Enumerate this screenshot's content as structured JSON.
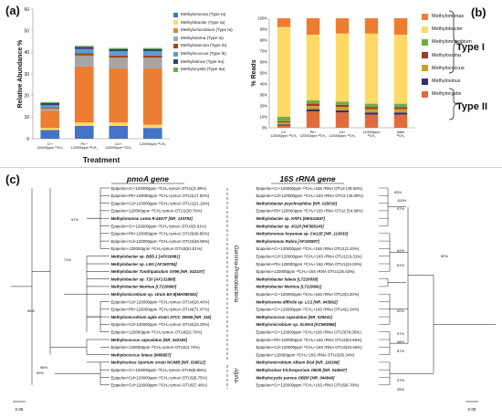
{
  "panels": {
    "a": "(a)",
    "b": "(b)",
    "c": "(c)"
  },
  "colors": {
    "Methylomonas": "#4472c4",
    "Methylobacter": "#ffd966",
    "Methylomicrobium": "#ed7d31",
    "Methylosoma": "#a5a5a5",
    "Methylosarcina": "#9e480e",
    "Methylococcus": "#5b9bd5",
    "Methylosinus": "#264478",
    "Methylocystis": "#70ad47",
    "b_Methylomonas": "#ed7d31",
    "b_Methylobacter": "#ffd966",
    "b_Methylomicrobium": "#70ad47",
    "b_Methylosoma": "#9e3b2b",
    "b_Methylococcus": "#c9a227",
    "b_Methylosinus": "#3a2f6b",
    "b_Methylocystis": "#e26b3a"
  },
  "chart_data": [
    {
      "type": "bar",
      "stacked": true,
      "title": "",
      "xlabel": "Treatment",
      "ylabel": "Relative Abundance %",
      "ylim": [
        0,
        60
      ],
      "yticks": [
        "0",
        "10",
        "20",
        "30",
        "40",
        "50",
        "60"
      ],
      "categories": [
        "Cl + 120000ppm ¹³CH₄",
        "Pb + 120000ppm ¹³CH₄",
        "Cd + 120000ppm ¹³CH₄",
        "120000ppm ¹³CH₄"
      ],
      "series": [
        {
          "name": "Methylomonas (Type Ia)",
          "color_key": "Methylomonas",
          "values": [
            4,
            6,
            6,
            5
          ]
        },
        {
          "name": "Methylobacter (Type Ia)",
          "color_key": "Methylobacter",
          "values": [
            1,
            1.5,
            1.5,
            1.5
          ]
        },
        {
          "name": "Methylomicrobium (Type Ia)",
          "color_key": "Methylomicrobium",
          "values": [
            8,
            26,
            25,
            26
          ]
        },
        {
          "name": "Methylosoma (Type Ia)",
          "color_key": "Methylosoma",
          "values": [
            1,
            5,
            5,
            5
          ]
        },
        {
          "name": "Methylosarcina (Type Ib)",
          "color_key": "Methylosarcina",
          "values": [
            0.5,
            1,
            1,
            1
          ]
        },
        {
          "name": "Methylococcus (Type Ib)",
          "color_key": "Methylococcus",
          "values": [
            1,
            2,
            2,
            2
          ]
        },
        {
          "name": "Methylosinus (Type IIa)",
          "color_key": "Methylosinus",
          "values": [
            1,
            1,
            1,
            1
          ]
        },
        {
          "name": "Methylocystis (Type IIa)",
          "color_key": "Methylocystis",
          "values": [
            0.5,
            0.5,
            0.5,
            0.5
          ]
        }
      ]
    },
    {
      "type": "bar",
      "stacked": true,
      "title": "",
      "xlabel": "",
      "ylabel": "% Reads",
      "ylim": [
        0,
        100
      ],
      "yticks": [
        "0%",
        "10%",
        "20%",
        "30%",
        "40%",
        "50%",
        "60%",
        "70%",
        "80%",
        "90%",
        "100%"
      ],
      "categories": [
        "Cl+ 120000ppm ¹³CH₄",
        "Pb+ 120000ppm ¹³CH₄",
        "Cd+ 120000ppm ¹³CH₄",
        "120000ppm ¹³CH₄",
        "Natm ¹³CH₄"
      ],
      "series": [
        {
          "name": "Methylocystis",
          "color_key": "b_Methylocystis",
          "values": [
            2,
            15,
            14,
            12,
            12
          ]
        },
        {
          "name": "Methylosinus",
          "color_key": "b_Methylosinus",
          "values": [
            1,
            2,
            2,
            2,
            2
          ]
        },
        {
          "name": "Methylococcus",
          "color_key": "b_Methylococcus",
          "values": [
            2,
            3,
            3,
            3,
            3
          ]
        },
        {
          "name": "Methylosoma",
          "color_key": "b_Methylosoma",
          "values": [
            1,
            2,
            2,
            2,
            2
          ]
        },
        {
          "name": "Methylomicrobium",
          "color_key": "b_Methylomicrobium",
          "values": [
            4,
            3,
            3,
            3,
            3
          ]
        },
        {
          "name": "Methylobacter",
          "color_key": "b_Methylobacter",
          "values": [
            82,
            60,
            62,
            64,
            63
          ]
        },
        {
          "name": "Methylomonas",
          "color_key": "b_Methylomonas",
          "values": [
            8,
            15,
            14,
            14,
            15
          ]
        }
      ]
    }
  ],
  "legend_a": [
    "Methylomonas (Type Ia)",
    "Methylobacter (Type Ia)",
    "Methylomicrobium (Type Ia)",
    "Methylosoma (Type Ia)",
    "Methylosarcina (Type Ib)",
    "Methylococcus (Type Ib)",
    "Methylosinus (Type IIa)",
    "Methylocystis (Type IIa)"
  ],
  "legend_b": [
    "Methylomonas",
    "Methylobacter",
    "Methylomicrobium",
    "Methylosoma",
    "Methylococcus",
    "Methylosinus",
    "Methylocystis"
  ],
  "type_labels": {
    "type1": "Type I",
    "type2": "Type II"
  },
  "trees": {
    "pmoA": {
      "title": "pmoA gene",
      "groups": [
        "Gamma-Proteobacteria",
        "Alpha-"
      ],
      "scale": "0.05",
      "bootstrap": [
        "91%",
        "71%",
        "96%",
        "99%",
        "98%"
      ],
      "leaves": [
        {
          "t": "Epipelon+Cr+120000ppm ¹³CH₄+pmoA OTU1(3.39%)",
          "b": false
        },
        {
          "t": "Epipelon+Pb+120000ppm ¹³CH₄+pmoA OTU1(17.50%)",
          "b": false
        },
        {
          "t": "Epipelon+Cd+120000ppm ¹³CH₄+pmoA OTU1(21.19%)",
          "b": false
        },
        {
          "t": "Epipelon+120000ppm ¹³CH₄+pmoA OTU1(30.76%)",
          "b": false
        },
        {
          "t": "Methylomonas Lenta R-45377 [NR_133783]",
          "b": true
        },
        {
          "t": "Epipelon+Cr+120000ppm ¹³CH₄+pmoA OTU3(3.91%)",
          "b": false
        },
        {
          "t": "Epipelon+Pb+120000ppm ¹³CH₄+pmoA OTU3(49.85%)",
          "b": false
        },
        {
          "t": "Epipelon+Cd+120000ppm ¹³CH₄+pmoA OTU3(48.05%)",
          "b": false
        },
        {
          "t": "Epipelon+120000ppm ¹³CH₄+pmoA OTU3(51.51%)",
          "b": false
        },
        {
          "t": "Methylobacter sp. BB5.1 [AF016981]",
          "b": true
        },
        {
          "t": "Methylobacter sp. LW1 [AF150784]",
          "b": true
        },
        {
          "t": "Methylobacter Tundripaludum SV96 [NR_042107]",
          "b": true
        },
        {
          "t": "Methylobacter sp. T20 [AF131868]",
          "b": true
        },
        {
          "t": "Methylobacter Marinus [LT220840]",
          "b": true
        },
        {
          "t": "Methylomicrobium sp. strain B3-6[MH385381]",
          "b": true
        },
        {
          "t": "Epipelon+Cd+120000ppm ¹³CH₄+pmoA OTU4(20.40%)",
          "b": false
        },
        {
          "t": "Epipelon+Pb+120000ppm ¹³CH₄+pmoA OTU4(71.47%)",
          "b": false
        },
        {
          "t": "Methylomicrobium agile strain ATCC 35068 [NR_116]",
          "b": true
        },
        {
          "t": "Epipelon+Cd+120000ppm ¹³CH₄+pmoA OTU4(22.25%)",
          "b": false
        },
        {
          "t": "Epipelon+120000ppm ¹³CH₄+pmoA OTU4(22.76%)",
          "b": false
        },
        {
          "t": "Methylococcus capsulatus [NR_042183]",
          "b": true
        },
        {
          "t": "Epipelon+120000ppm ¹³CH₄+pmoA OTU2(4.74%)",
          "b": false
        },
        {
          "t": "Methylococcus luteus [M95657]",
          "b": true
        },
        {
          "t": "Methylosinus Sporium strain NCIMB [NR_026512]",
          "b": true
        },
        {
          "t": "Epipelon+Cr+120000ppm ¹³CH₄+pmoA OTU5(8.95%)",
          "b": false
        },
        {
          "t": "Epipelon+Cd+120000ppm ¹³CH₄+pmoA OTU5(6.75%)",
          "b": false
        },
        {
          "t": "Epipelon+Cd+120000ppm ¹³CH₄+pmoA OTU5(7.46%)",
          "b": false
        }
      ]
    },
    "rrna": {
      "title": "16S rRNA gene",
      "scale": "0.05",
      "bootstrap": [
        "83%",
        "100%",
        "97%",
        "62%",
        "89%",
        "61%",
        "60%",
        "97%",
        "98%",
        "87%",
        "97%",
        "95%"
      ],
      "leaves": [
        {
          "t": "Epipelon+Cr+120000ppm ¹³CH₄+16S rRNA OTU2 (49.60%)",
          "b": false
        },
        {
          "t": "Epipelon+Cd+120000ppm ¹³CH₄+16S rRNA OTU2 (48.09%)",
          "b": false
        },
        {
          "t": "Methylobacter psychrophilus [NR_025016]",
          "b": true
        },
        {
          "t": "Epipelon+Pb+120000ppm ¹³CH₄+16S rRNA OTU2 (54.98%)",
          "b": false
        },
        {
          "t": "Methylobacter sp. KRF1 [MK511847]",
          "b": true
        },
        {
          "t": "Methylobacter sp. 4/120 [HF565143]",
          "b": true
        },
        {
          "t": "Methylomonas koyamae sp. Fw12E [NR_113033]",
          "b": true
        },
        {
          "t": "Methylomonas Rubra [AF150807]",
          "b": true
        },
        {
          "t": "Epipelon+Cr+120000ppm ¹³CH₄+16S rRNA OTU1(3.33%)",
          "b": false
        },
        {
          "t": "Epipelon+Cd+120000ppm ¹³CH₄+16S rRNA OTU1(19.31%)",
          "b": false
        },
        {
          "t": "Epipelon+Pb+120000ppm ¹³CH₄+16S rRNA OTU1(24.02%)",
          "b": false
        },
        {
          "t": "Epipelon+120000ppm ¹³CH₄+16S rRNA OTU1(25.63%)",
          "b": false
        },
        {
          "t": "Methylobacter luteus [LT220838]",
          "b": true
        },
        {
          "t": "Methylobacter Marinus [LT220841]",
          "b": true
        },
        {
          "t": "Epipelon+Cr+120000ppm ¹³CH₄+16S rRNA OTU3(3.20%)",
          "b": false
        },
        {
          "t": "Methylosoma difficile sp. LC2 [NR_043562]",
          "b": true
        },
        {
          "t": "Epipelon+Cr+120000ppm ¹³CH₄+16S rRNA OTU4(2.34%)",
          "b": false
        },
        {
          "t": "Methylococcus capsulatus [NR_029241]",
          "b": true
        },
        {
          "t": "Methylomicrobium sp. XLMV4 [KC963966]",
          "b": true
        },
        {
          "t": "Epipelon+Cr+120000ppm ¹³CH₄+16S rRNA OTU3(78.05%)",
          "b": false
        },
        {
          "t": "Epipelon+Pb+120000ppm ¹³CH₄+16S rRNA OTU3(54.55%)",
          "b": false
        },
        {
          "t": "Epipelon+Cd+120000ppm ¹³CH₄+16S rRNA OTU3(34.66%)",
          "b": false
        },
        {
          "t": "Epipelon+120000ppm ¹³CH₄+16S rRNA OTU3(36.34%)",
          "b": false
        },
        {
          "t": "Methylomicrobium Album BG8 [NR_116196]",
          "b": true
        },
        {
          "t": "Methylosinus trichosporium OB3b [NR_044947]",
          "b": true
        },
        {
          "t": "Methylocystis parvus OBBP [NR_044946]",
          "b": true
        },
        {
          "t": "Epipelon+Cr+120000ppm ¹³CH₄+16S rRNA OTU5(6.78%)",
          "b": false
        }
      ]
    }
  }
}
